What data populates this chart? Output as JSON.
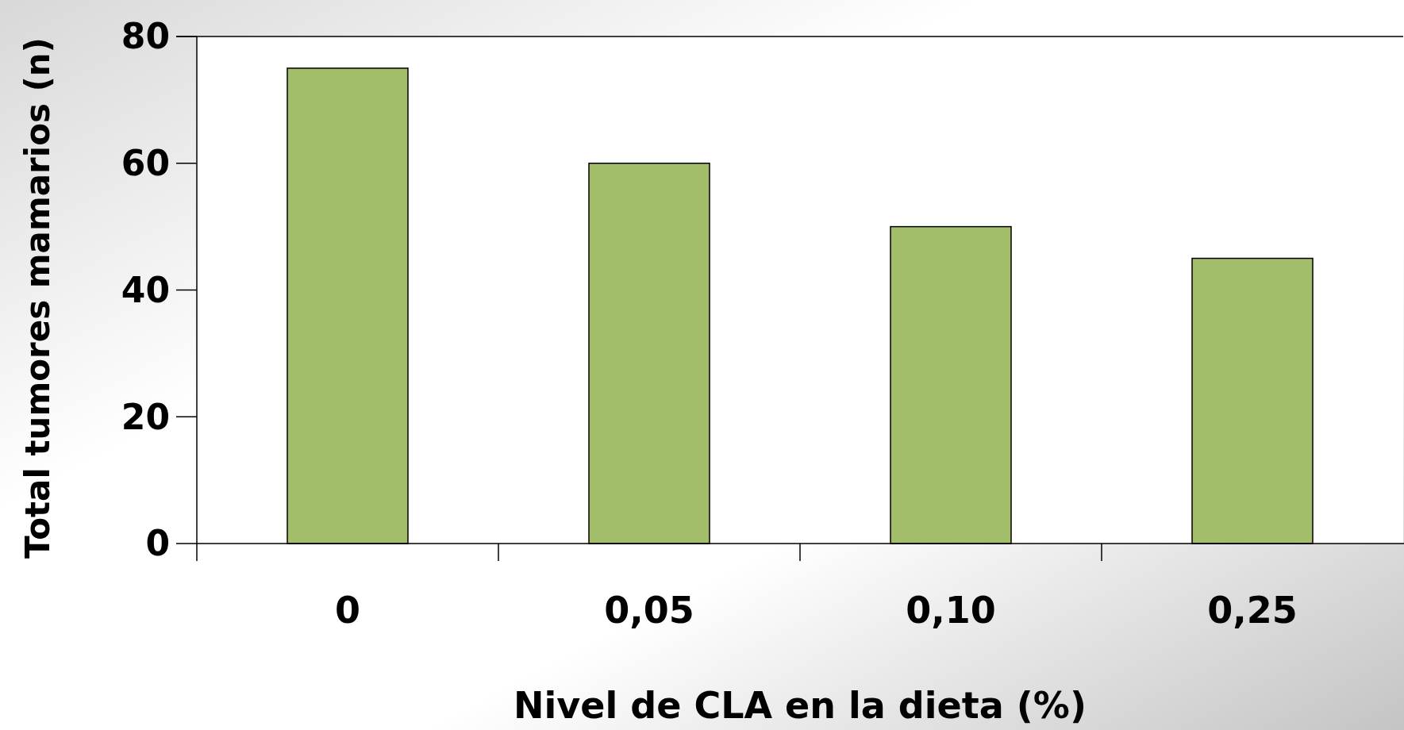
{
  "chart_data": {
    "type": "bar",
    "xlabel": "Nivel de CLA en la dieta (%)",
    "ylabel": "Total tumores mamarios (n)",
    "categories": [
      "0",
      "0,05",
      "0,10",
      "0,25"
    ],
    "values": [
      75,
      60,
      50,
      45
    ],
    "color": "#a3be6b",
    "ylim": [
      0,
      80
    ],
    "yticks": [
      0,
      20,
      40,
      60,
      80
    ],
    "grid": false
  }
}
